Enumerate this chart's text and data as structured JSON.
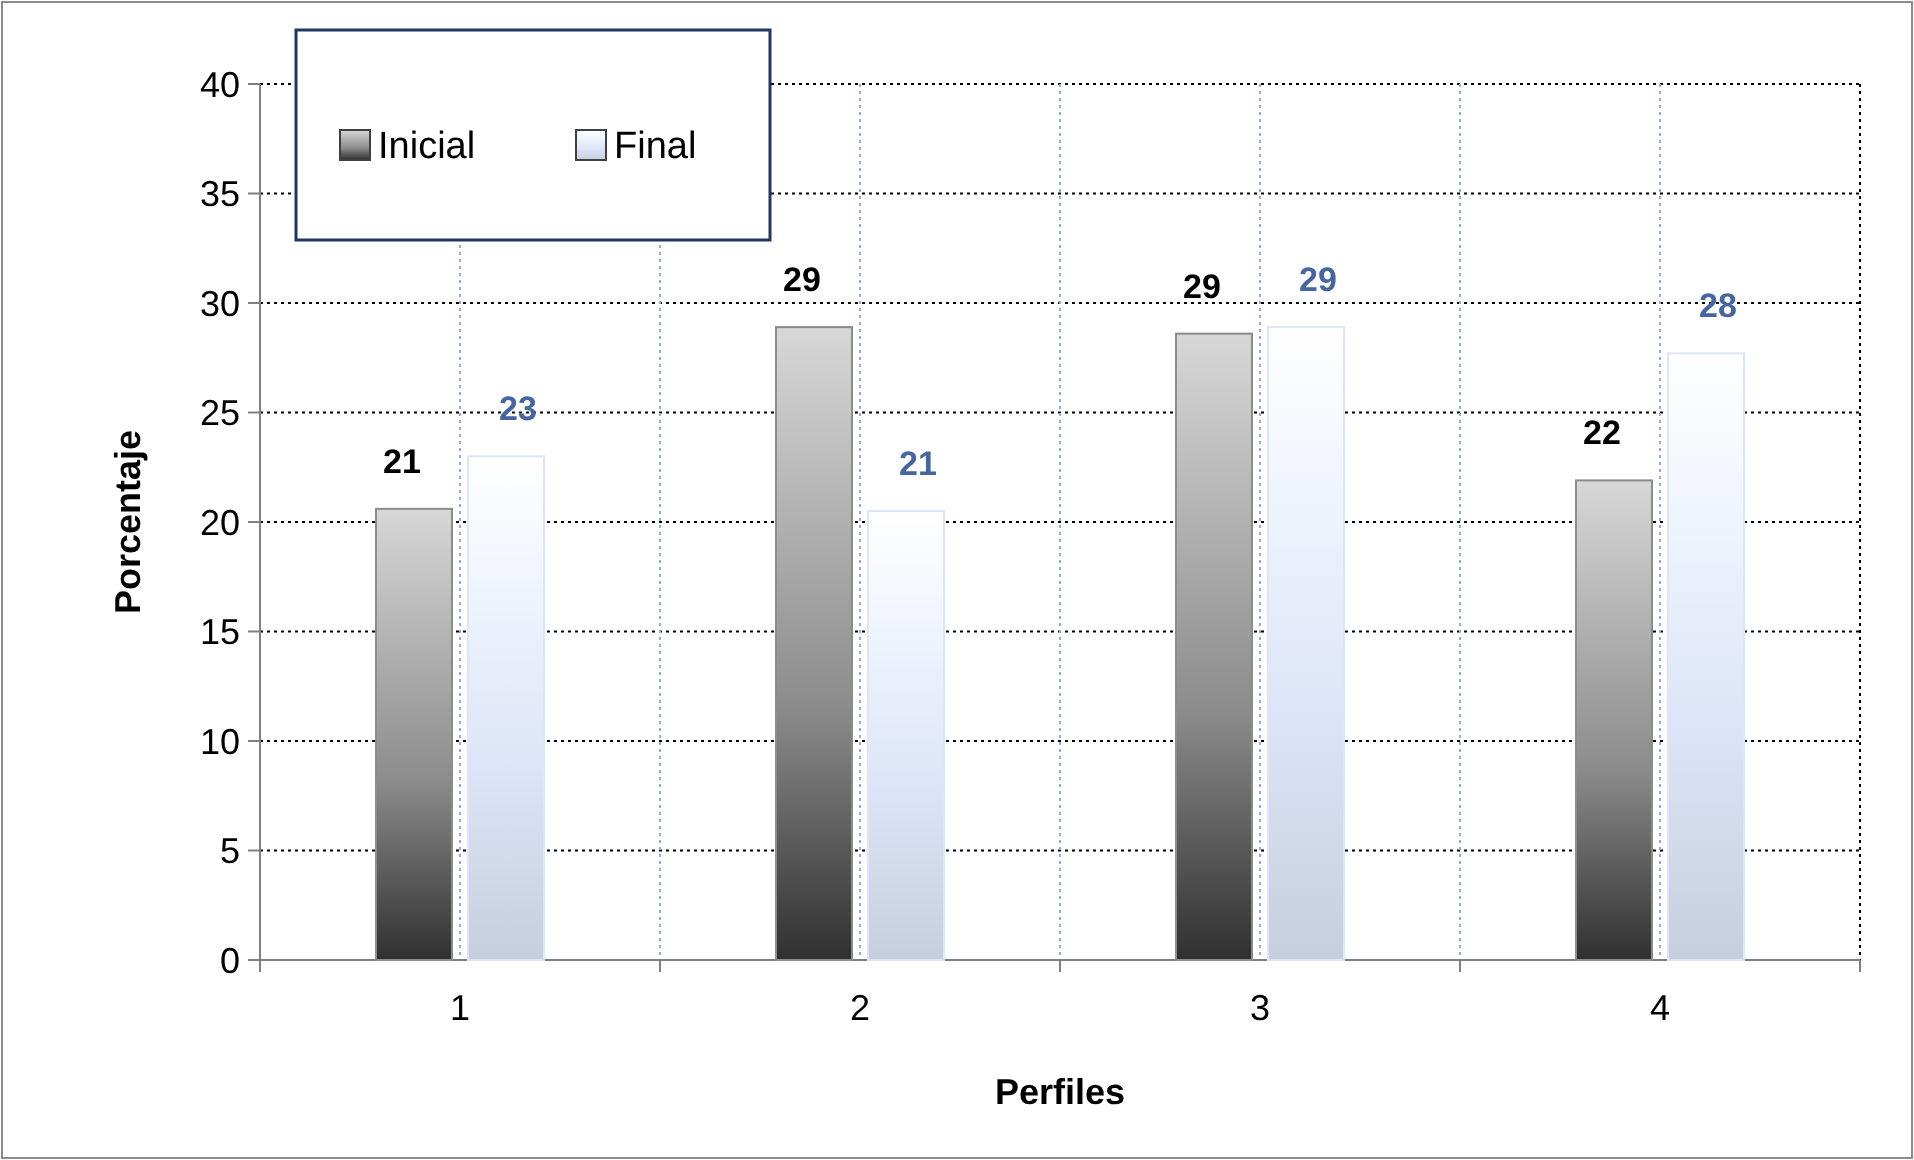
{
  "chart_data": {
    "type": "bar",
    "xlabel": "Perfiles",
    "ylabel": "Porcentaje",
    "categories": [
      "1",
      "2",
      "3",
      "4"
    ],
    "series": [
      {
        "name": "Inicial",
        "color": "#8c8c8c",
        "values": [
          20.6,
          28.9,
          28.6,
          21.9
        ],
        "value_labels": [
          "21",
          "29",
          "29",
          "22"
        ]
      },
      {
        "name": "Final",
        "color": "#dce6f8",
        "values": [
          23,
          20.5,
          28.9,
          27.7
        ],
        "value_labels": [
          "23",
          "21",
          "29",
          "28"
        ]
      }
    ],
    "ylim": [
      0,
      40
    ],
    "yticks": [
      0,
      5,
      10,
      15,
      20,
      25,
      30,
      35,
      40
    ],
    "grid": true,
    "legend": "top left"
  }
}
